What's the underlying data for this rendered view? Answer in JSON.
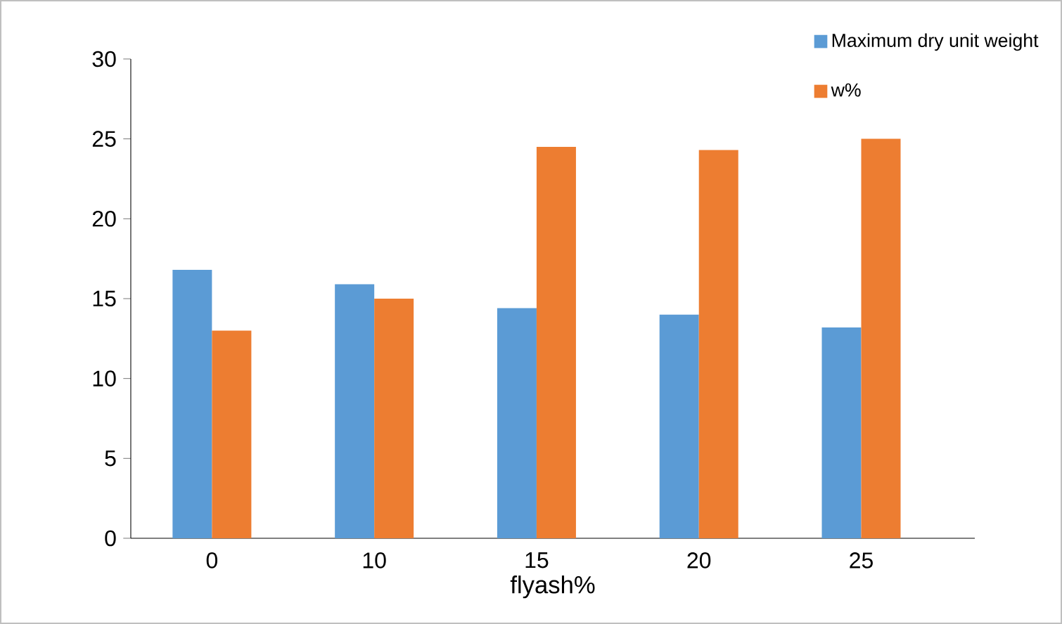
{
  "chart_data": {
    "type": "bar",
    "xlabel": "flyash%",
    "categories": [
      "0",
      "10",
      "15",
      "20",
      "25"
    ],
    "series": [
      {
        "name": "Maximum dry unit weight",
        "color": "#5b9bd5",
        "values": [
          16.8,
          15.9,
          14.4,
          14.0,
          13.2
        ]
      },
      {
        "name": "w%",
        "color": "#ed7d31",
        "values": [
          13.0,
          15.0,
          24.5,
          24.3,
          25.0
        ]
      }
    ],
    "ylim": [
      0,
      30
    ],
    "yticks": [
      0,
      5,
      10,
      15,
      20,
      25,
      30
    ],
    "legend": "top right"
  }
}
